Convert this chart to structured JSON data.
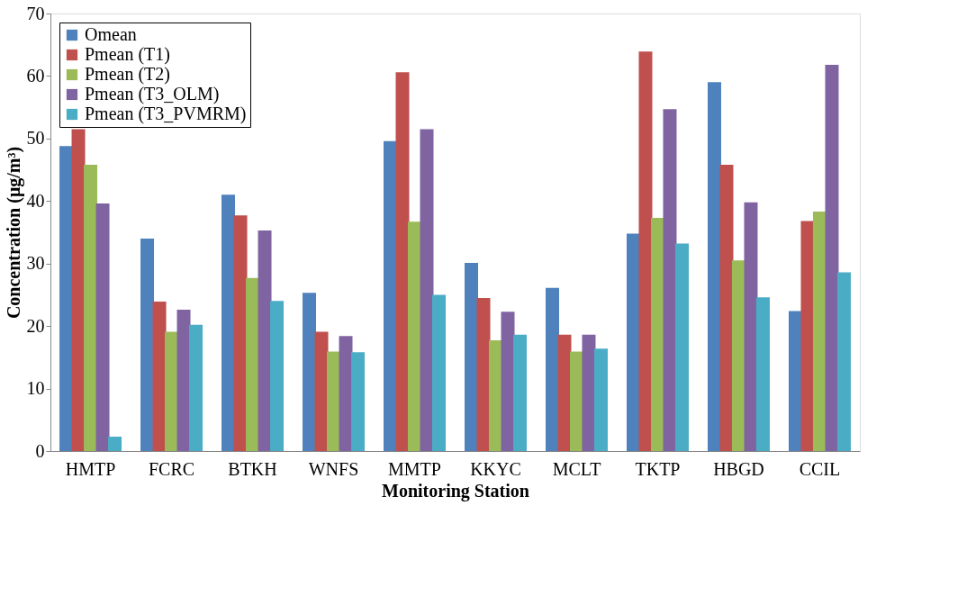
{
  "chart_data": {
    "type": "bar",
    "xlabel": "Monitoring Station",
    "ylabel": "Concentration (μg/m³)",
    "categories": [
      "HMTP",
      "FCRC",
      "BTKH",
      "WNFS",
      "MMTP",
      "KKYC",
      "MCLT",
      "TKTP",
      "HBGD",
      "CCIL"
    ],
    "series": [
      {
        "name": "Omean",
        "color": "#4f81bd",
        "values": [
          48.8,
          34.0,
          41.0,
          25.3,
          49.6,
          30.1,
          26.1,
          34.8,
          59.0,
          22.4
        ]
      },
      {
        "name": "Pmean (T1)",
        "color": "#c0504d",
        "values": [
          51.5,
          23.9,
          37.7,
          19.1,
          60.6,
          24.5,
          18.6,
          63.9,
          45.8,
          36.8
        ]
      },
      {
        "name": "Pmean (T2)",
        "color": "#9bbb59",
        "values": [
          45.8,
          19.1,
          27.7,
          15.9,
          36.7,
          17.7,
          15.9,
          37.3,
          30.5,
          38.3
        ]
      },
      {
        "name": "Pmean (T3_OLM)",
        "color": "#8064a2",
        "values": [
          39.6,
          22.6,
          35.3,
          18.4,
          51.5,
          22.3,
          18.6,
          54.7,
          39.8,
          61.8
        ]
      },
      {
        "name": "Pmean (T3_PVMRM)",
        "color": "#4bacc6",
        "values": [
          2.3,
          20.2,
          24.0,
          15.8,
          25.0,
          18.6,
          16.4,
          33.2,
          24.6,
          28.6
        ]
      }
    ],
    "ylim": [
      0,
      70
    ],
    "yticks": [
      0,
      10,
      20,
      30,
      40,
      50,
      60,
      70
    ],
    "grid": false,
    "legend": "top left"
  }
}
